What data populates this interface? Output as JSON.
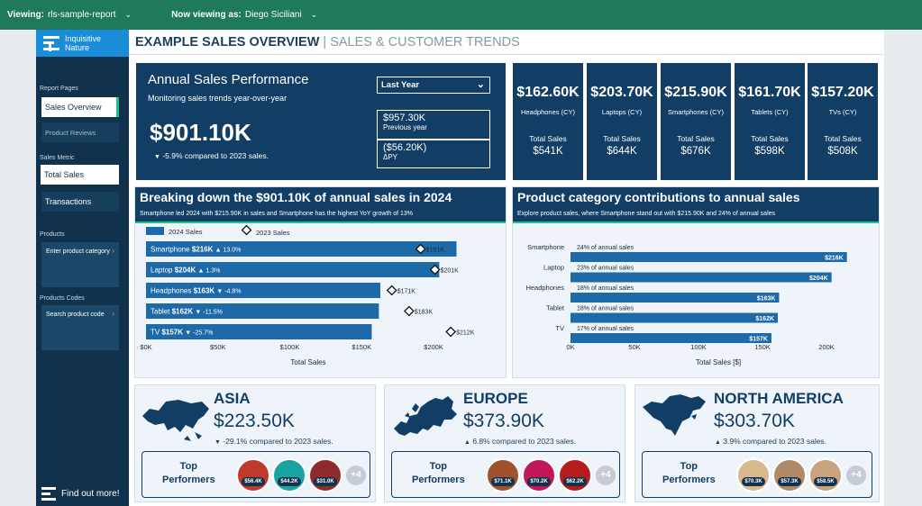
{
  "topbar": {
    "viewing_label": "Viewing:",
    "viewing_value": "rls-sample-report",
    "viewas_label": "Now viewing as:",
    "viewas_value": "Diego Siciliani"
  },
  "sidebar": {
    "logo_line1": "Inquisitive",
    "logo_line2": "Nature",
    "report_pages_label": "Report Pages",
    "pages": [
      "Sales Overview",
      "Product Reviews"
    ],
    "sales_metric_label": "Sales Metric",
    "metrics": [
      "Total Sales",
      "Transactions"
    ],
    "products_label": "Products",
    "products_placeholder": "Enter product category",
    "codes_label": "Products Codes",
    "codes_placeholder": "Search product code",
    "find_more": "Find out more!"
  },
  "header": {
    "title": "EXAMPLE SALES OVERVIEW",
    "subtitle": "| SALES & CUSTOMER TRENDS"
  },
  "annual": {
    "title": "Annual Sales Performance",
    "subtitle": "Monitoring sales trends year-over-year",
    "period": "Last Year",
    "value": "$901.10K",
    "change": "-5.9% compared to 2023 sales.",
    "previous_value": "$957.30K",
    "previous_label": "Previous year",
    "delta_value": "($56.20K)",
    "delta_label": "ΔPY"
  },
  "kpis": [
    {
      "value": "$162.60K",
      "label": "Headphones (CY)",
      "total_label": "Total Sales",
      "total_value": "$541K"
    },
    {
      "value": "$203.70K",
      "label": "Laptops (CY)",
      "total_label": "Total Sales",
      "total_value": "$644K"
    },
    {
      "value": "$215.90K",
      "label": "Smartphones (CY)",
      "total_label": "Total Sales",
      "total_value": "$676K"
    },
    {
      "value": "$161.70K",
      "label": "Tablets (CY)",
      "total_label": "Total Sales",
      "total_value": "$598K"
    },
    {
      "value": "$157.20K",
      "label": "TVs (CY)",
      "total_label": "Total Sales",
      "total_value": "$508K"
    }
  ],
  "breakdown": {
    "title": "Breaking down the $901.10K of annual sales in 2024",
    "subtitle": "Smartphone led 2024 with $215.90K in sales and Smartphone has the highest YoY growth of 13%"
  },
  "contrib": {
    "title": "Product category contributions to annual sales",
    "subtitle": "Explore product sales, where Smartphone stand out with $215.90K and 24% of annual sales"
  },
  "chart_data": [
    {
      "type": "bar",
      "orientation": "horizontal",
      "categories": [
        "Smartphone",
        "Laptop",
        "Headphones",
        "Tablet",
        "TV"
      ],
      "series": [
        {
          "name": "2024 Sales",
          "values": [
            216,
            204,
            163,
            162,
            157
          ]
        },
        {
          "name": "2023 Sales",
          "values": [
            191,
            201,
            171,
            183,
            212
          ]
        }
      ],
      "bar_labels": [
        "$216K",
        "$204K",
        "$163K",
        "$162K",
        "$157K"
      ],
      "marker_labels": [
        "$191K",
        "$201K",
        "$171K",
        "$183K",
        "$212K"
      ],
      "changes": [
        "13.0%",
        "1.3%",
        "-4.8%",
        "-11.5%",
        "-25.7%"
      ],
      "change_dirs": [
        "up",
        "up",
        "down",
        "down",
        "down"
      ],
      "xlabel": "Total Sales",
      "xticks": [
        "$0K",
        "$50K",
        "$100K",
        "$150K",
        "$200K"
      ],
      "xlim": [
        0,
        240
      ],
      "legend": "top-left"
    },
    {
      "type": "bar",
      "orientation": "horizontal",
      "categories": [
        "Smartphone",
        "Laptop",
        "Headphones",
        "Tablet",
        "TV"
      ],
      "values": [
        216,
        204,
        163,
        162,
        157
      ],
      "value_labels": [
        "$216K",
        "$204K",
        "$163K",
        "$162K",
        "$157K"
      ],
      "annotations": [
        "24% of annual sales",
        "23% of annual sales",
        "18% of annual sales",
        "18% of annual sales",
        "17% of annual sales"
      ],
      "xlabel": "Total Sales [$]",
      "xticks": [
        "0K",
        "50K",
        "100K",
        "150K",
        "200K"
      ],
      "xlim": [
        0,
        240
      ]
    }
  ],
  "regions": [
    {
      "name": "ASIA",
      "value": "$223.50K",
      "change": "-29.1% compared to 2023 sales.",
      "dir": "down",
      "performers_label_1": "Top",
      "performers_label_2": "Performers",
      "badges": [
        "$56.4K",
        "$44.2K",
        "$31.0K"
      ],
      "more": "+4"
    },
    {
      "name": "EUROPE",
      "value": "$373.90K",
      "change": "6.8% compared to 2023 sales.",
      "dir": "up",
      "performers_label_1": "Top",
      "performers_label_2": "Performers",
      "badges": [
        "$71.1K",
        "$70.2K",
        "$62.2K"
      ],
      "more": "+4"
    },
    {
      "name": "NORTH AMERICA",
      "value": "$303.70K",
      "change": "3.9% compared to 2023 sales.",
      "dir": "up",
      "performers_label_1": "Top",
      "performers_label_2": "Performers",
      "badges": [
        "$70.3K",
        "$57.3K",
        "$58.5K"
      ],
      "more": "+4"
    }
  ],
  "colors": {
    "topbar": "#1f7a5a",
    "navy": "#123e66",
    "bar": "#1e6aa8",
    "accent": "#21c28a"
  }
}
